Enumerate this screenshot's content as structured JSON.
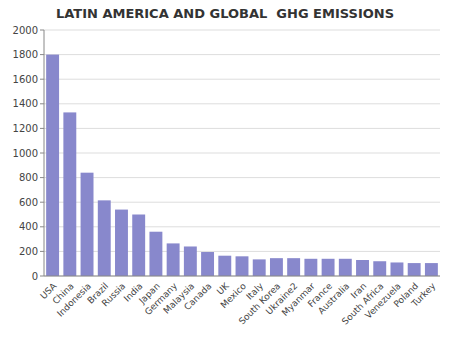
{
  "chart_data": {
    "type": "bar",
    "title": "LATIN AMERICA AND GLOBAL  GHG EMISSIONS",
    "categories": [
      "USA",
      "China",
      "Indonesia",
      "Brazil",
      "Russia",
      "India",
      "Japan",
      "Germany",
      "Malaysia",
      "Canada",
      "UK",
      "Mexico",
      "Italy",
      "South Korea",
      "Ukraine2",
      "Myanmar",
      "France",
      "Australia",
      "Iran",
      "South Africa",
      "Venezuela",
      "Poland",
      "Turkey"
    ],
    "values": [
      1800,
      1330,
      840,
      615,
      540,
      500,
      360,
      265,
      240,
      195,
      165,
      160,
      135,
      145,
      145,
      140,
      140,
      140,
      130,
      120,
      110,
      105,
      105
    ],
    "color": "#8888CC",
    "ylim": [
      0,
      2000
    ],
    "yticks": [
      0,
      200,
      400,
      600,
      800,
      1000,
      1200,
      1400,
      1600,
      1800,
      2000
    ],
    "grid": true
  }
}
